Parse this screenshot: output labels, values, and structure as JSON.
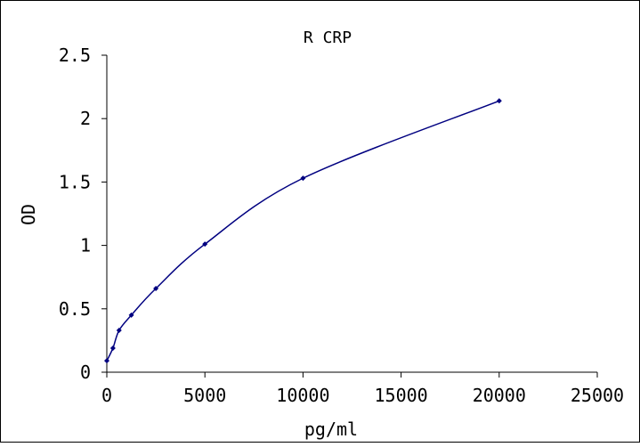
{
  "chart_data": {
    "type": "scatter",
    "title": "R CRP",
    "xlabel": "pg/ml",
    "ylabel": "OD",
    "xlim": [
      0,
      25000
    ],
    "ylim": [
      0,
      2.5
    ],
    "x_ticks": [
      0,
      5000,
      10000,
      15000,
      20000,
      25000
    ],
    "y_ticks": [
      0,
      0.5,
      1,
      1.5,
      2,
      2.5
    ],
    "x_tick_labels": [
      "0",
      "5000",
      "10000",
      "15000",
      "20000",
      "25000"
    ],
    "y_tick_labels": [
      "0",
      "0.5",
      "1",
      "1.5",
      "2",
      "2.5"
    ],
    "grid": false,
    "legend": "none",
    "colors": {
      "series": "#000080",
      "axis": "#000000",
      "frame": "#000000"
    },
    "series": [
      {
        "marker": "diamond",
        "line": "smooth",
        "x": [
          0,
          312.5,
          625,
          1250,
          2500,
          5000,
          10000,
          20000
        ],
        "y": [
          0.09,
          0.19,
          0.33,
          0.45,
          0.66,
          1.01,
          1.53,
          2.14
        ]
      }
    ]
  }
}
